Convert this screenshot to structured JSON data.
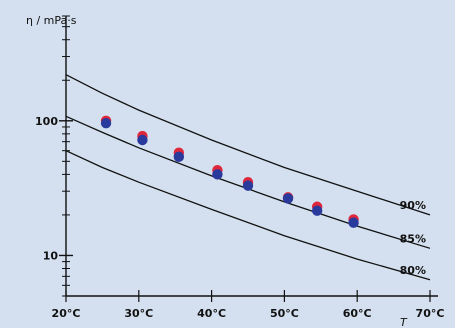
{
  "chart_data": {
    "type": "scatter",
    "title": "",
    "ylabel": "η / mPa·s",
    "xlabel": "T",
    "x_tick_labels": [
      "20°C",
      "30°C",
      "40°C",
      "50°C",
      "60°C",
      "70°C"
    ],
    "x_ticks": [
      20,
      30,
      40,
      50,
      60,
      70
    ],
    "y_tick_labels": [
      "10",
      "100"
    ],
    "y_ticks": [
      10,
      100
    ],
    "xlim": [
      20,
      70
    ],
    "ylim": [
      5,
      600
    ],
    "y_scale": "log",
    "grid": false,
    "curves": [
      {
        "name": "90%",
        "points": [
          [
            20,
            220
          ],
          [
            25,
            160
          ],
          [
            30,
            120
          ],
          [
            40,
            72
          ],
          [
            50,
            45
          ],
          [
            60,
            30
          ],
          [
            70,
            20
          ]
        ]
      },
      {
        "name": "85%",
        "points": [
          [
            20,
            108
          ],
          [
            25,
            82
          ],
          [
            30,
            63
          ],
          [
            40,
            39
          ],
          [
            50,
            25
          ],
          [
            60,
            16.5
          ],
          [
            70,
            11.3
          ]
        ]
      },
      {
        "name": "80%",
        "points": [
          [
            20,
            60
          ],
          [
            25,
            45
          ],
          [
            30,
            35
          ],
          [
            40,
            22
          ],
          [
            50,
            14
          ],
          [
            60,
            9.4
          ],
          [
            70,
            6.6
          ]
        ]
      }
    ],
    "series": [
      {
        "name": "",
        "color": "#e0263a",
        "points": [
          [
            25.5,
            100
          ],
          [
            30.5,
            77
          ],
          [
            35.5,
            58
          ],
          [
            40.8,
            43
          ],
          [
            45,
            35
          ],
          [
            50.5,
            27
          ],
          [
            54.5,
            23
          ],
          [
            59.5,
            18.5
          ]
        ]
      },
      {
        "name": "",
        "color": "#2a3a9c",
        "points": [
          [
            25.5,
            96
          ],
          [
            30.5,
            72
          ],
          [
            35.5,
            54
          ],
          [
            40.8,
            40
          ],
          [
            45,
            33
          ],
          [
            50.5,
            26.5
          ],
          [
            54.5,
            21.5
          ],
          [
            59.5,
            17.5
          ]
        ]
      }
    ]
  }
}
